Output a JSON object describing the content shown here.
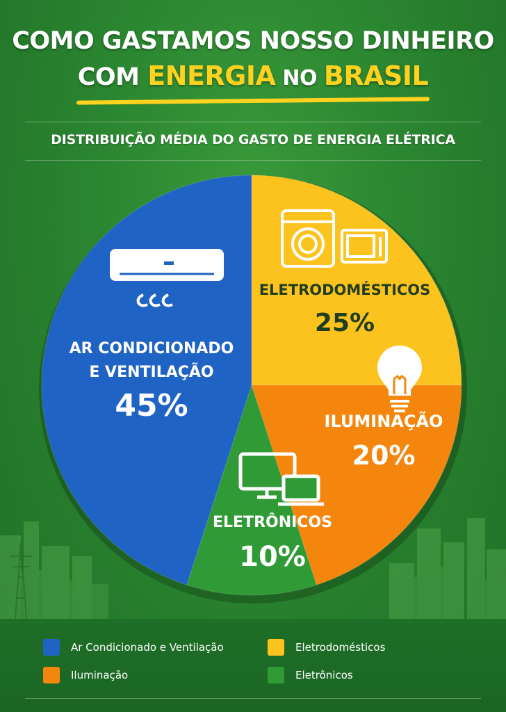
{
  "header": {
    "title_line1": "COMO GASTAMOS NOSSO DINHEIRO",
    "title_line2_a": "COM ",
    "title_line2_b": "ENERGIA",
    "title_line2_c": " NO ",
    "title_line2_d": "BRASIL"
  },
  "chart_data": {
    "type": "pie",
    "title": "DISTRIBUIÇÃO MÉDIA DO GASTO DE ENERGIA ELÉTRICA",
    "slices": [
      {
        "label_lines": [
          "AR CONDICIONADO",
          "E VENTILAÇÃO"
        ],
        "value": 45,
        "value_label": "45%",
        "color": "#1f63c4",
        "icon": "air-conditioner-icon"
      },
      {
        "label_lines": [
          "ELETRODOMÉSTICOS"
        ],
        "value": 25,
        "value_label": "25%",
        "color": "#fcc21d",
        "icon": "appliances-icon"
      },
      {
        "label_lines": [
          "ILUMINAÇÃO"
        ],
        "value": 20,
        "value_label": "20%",
        "color": "#f5860d",
        "icon": "light-bulb-icon"
      },
      {
        "label_lines": [
          "ELETRÔNICOS"
        ],
        "value": 10,
        "value_label": "10%",
        "color": "#2f9a36",
        "icon": "electronics-icon"
      }
    ],
    "legend": [
      {
        "label": "Ar Condicionado e Ventilação",
        "color": "#1f63c4"
      },
      {
        "label": "Eletrodomésticos",
        "color": "#fcc21d"
      },
      {
        "label": "Iluminação",
        "color": "#f5860d"
      },
      {
        "label": "Eletrônicos",
        "color": "#2f9a36"
      }
    ],
    "legend_placement": "bottom"
  }
}
